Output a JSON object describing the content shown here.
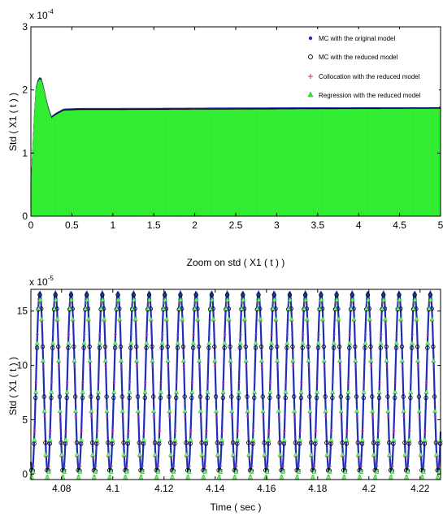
{
  "chart_data": [
    {
      "type": "line",
      "title": "",
      "xlabel": "",
      "ylabel": "Std ( X1 ( t ) )",
      "y_multiplier": "x 10",
      "y_exponent": "-4",
      "xlim": [
        0,
        5
      ],
      "ylim": [
        0,
        3
      ],
      "x_ticks": [
        0,
        0.5,
        1,
        1.5,
        2,
        2.5,
        3,
        3.5,
        4,
        4.5,
        5
      ],
      "x_tick_labels": [
        "0",
        "0.5",
        "1",
        "1.5",
        "2",
        "2.5",
        "3",
        "3.5",
        "4",
        "4.5",
        "5"
      ],
      "y_ticks": [
        0,
        1,
        2,
        3
      ],
      "y_tick_labels": [
        "0",
        "1",
        "2",
        "3"
      ],
      "legend_position": "top-right",
      "envelope": {
        "x": [
          0,
          0.03,
          0.06,
          0.09,
          0.12,
          0.15,
          0.2,
          0.25,
          0.3,
          0.4,
          0.6,
          1,
          2,
          3,
          4,
          5
        ],
        "y": [
          0.4,
          1.3,
          2.0,
          2.15,
          2.18,
          2.05,
          1.75,
          1.55,
          1.6,
          1.67,
          1.68,
          1.68,
          1.685,
          1.69,
          1.695,
          1.7
        ]
      },
      "series": [
        {
          "name": "MC with the original model",
          "color": "#1f2fb5",
          "marker": "dot"
        },
        {
          "name": "MC with the reduced model",
          "color": "#000000",
          "marker": "circle"
        },
        {
          "name": "Collocation with the reduced model",
          "color": "#c03090",
          "marker": "plus"
        },
        {
          "name": "Regression with the reduced model",
          "color": "#33ee33",
          "marker": "triangle"
        }
      ]
    },
    {
      "type": "line",
      "title": "Zoom on std ( X1 ( t ) )",
      "xlabel": "Time ( sec )",
      "ylabel": "Std ( X1 ( t ) )",
      "y_multiplier": "x 10",
      "y_exponent": "-5",
      "xlim": [
        4.068,
        4.228
      ],
      "ylim": [
        -0.5,
        17
      ],
      "x_ticks": [
        4.08,
        4.1,
        4.12,
        4.14,
        4.16,
        4.18,
        4.2,
        4.22
      ],
      "x_tick_labels": [
        "4.08",
        "4.1",
        "4.12",
        "4.14",
        "4.16",
        "4.18",
        "4.2",
        "4.22"
      ],
      "y_ticks": [
        0,
        5,
        10,
        15
      ],
      "y_tick_labels": [
        "0",
        "5",
        "10",
        "15"
      ],
      "period": 0.0061,
      "first_peak": 4.0715,
      "peak_value": 16.5,
      "trough_value": 0
    }
  ]
}
